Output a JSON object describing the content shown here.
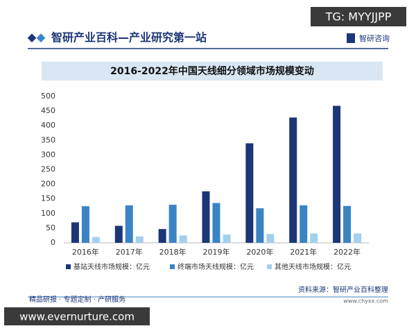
{
  "header": {
    "title": "智研产业百科—产业研究第一站",
    "brand": "智研咨询",
    "badge": "TG: MYYJJPP"
  },
  "chart_data": {
    "type": "bar",
    "title": "2016-2022年中国天线细分领域市场规模变动",
    "categories": [
      "2016年",
      "2017年",
      "2018年",
      "2019年",
      "2020年",
      "2021年",
      "2022年"
    ],
    "series": [
      {
        "name": "基站天线市场规模：亿元",
        "color": "#1c3677",
        "values": [
          70,
          58,
          47,
          176,
          340,
          428,
          468
        ]
      },
      {
        "name": "终端市场天线规模：亿元",
        "color": "#3b84c4",
        "values": [
          125,
          128,
          130,
          136,
          118,
          128,
          126
        ]
      },
      {
        "name": "其他天线市场规模：亿元",
        "color": "#a2d0ee",
        "values": [
          20,
          22,
          25,
          28,
          30,
          32,
          32
        ]
      }
    ],
    "ylim": [
      0,
      500
    ],
    "yticks": [
      0,
      50,
      100,
      150,
      200,
      250,
      300,
      350,
      400,
      450,
      500
    ],
    "grid": false,
    "legend": "bottom"
  },
  "source": {
    "text": "资料来源：智研产业百科整理",
    "url": "www.chyxx.com"
  },
  "footer": {
    "text": "精品研报 · 专题定制 · 产研服务",
    "watermark": "www.evernurture.com"
  }
}
